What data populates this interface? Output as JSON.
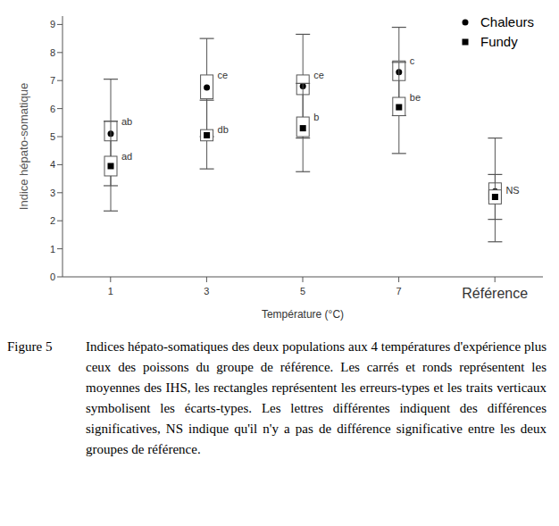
{
  "chart_data": {
    "type": "box",
    "x_label": "Température (°C)",
    "y_label": "Indice hépato-somatique",
    "categories": [
      "1",
      "3",
      "5",
      "7",
      "Référence"
    ],
    "ylim": [
      0,
      9.3
    ],
    "yticks": [
      0,
      1,
      2,
      3,
      4,
      5,
      6,
      7,
      8,
      9
    ],
    "grid": false,
    "legend": "upper right",
    "series": [
      {
        "name": "Chaleurs",
        "color": "#000000",
        "marker": "circle",
        "values": [
          5.1,
          6.75,
          6.8,
          7.3,
          3.05
        ],
        "se_low": [
          4.85,
          6.35,
          6.5,
          7.0,
          2.75
        ],
        "se_high": [
          5.55,
          7.2,
          7.2,
          7.7,
          3.35
        ],
        "sd_low": [
          3.25,
          5.0,
          4.95,
          5.75,
          1.25
        ],
        "sd_high": [
          7.05,
          8.5,
          8.65,
          8.9,
          4.95
        ],
        "letters": [
          "ab",
          "ce",
          "ce",
          "c",
          null
        ]
      },
      {
        "name": "Fundy",
        "color": "#000000",
        "marker": "square",
        "values": [
          3.95,
          5.05,
          5.3,
          6.05,
          2.85
        ],
        "se_low": [
          3.6,
          4.85,
          5.0,
          5.75,
          2.6
        ],
        "se_high": [
          4.3,
          5.25,
          5.7,
          6.4,
          3.1
        ],
        "sd_low": [
          2.35,
          3.85,
          3.75,
          4.4,
          2.05
        ],
        "sd_high": [
          5.55,
          6.3,
          6.9,
          7.65,
          3.65
        ],
        "letters": [
          "ad",
          "db",
          "b",
          "be",
          "NS"
        ]
      }
    ]
  },
  "caption": {
    "label": "Figure 5",
    "text": "Indices hépato-somatiques des deux populations aux 4 températures d'expérience plus ceux des poissons du groupe de référence. Les carrés et ronds représentent les moyennes des IHS, les rectangles représentent les erreurs-types et les traits verticaux symbolisent les écarts-types. Les lettres différentes indiquent des différences significatives, NS indique qu'il n'y a pas de différence significative entre les deux groupes de référence."
  }
}
